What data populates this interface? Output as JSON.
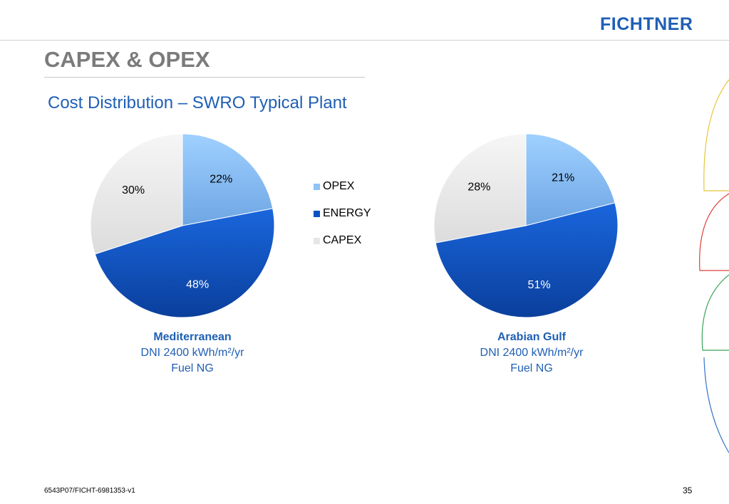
{
  "header": {
    "logo": "FICHTNER",
    "title": "CAPEX & OPEX",
    "subtitle": "Cost Distribution – SWRO Typical Plant"
  },
  "colors": {
    "opex": "#8fc3f5",
    "energy": "#0a52c4",
    "capex": "#ececec",
    "accent": "#1f5fb4"
  },
  "chart_data": [
    {
      "type": "pie",
      "categories": [
        "OPEX",
        "ENERGY",
        "CAPEX"
      ],
      "values": [
        22,
        48,
        30
      ],
      "labels": [
        "22%",
        "48%",
        "30%"
      ],
      "caption": {
        "region": "Mediterranean",
        "line1": "DNI 2400 kWh/m²/yr",
        "line2": "Fuel NG"
      }
    },
    {
      "type": "pie",
      "categories": [
        "OPEX",
        "ENERGY",
        "CAPEX"
      ],
      "values": [
        21,
        51,
        28
      ],
      "labels": [
        "21%",
        "51%",
        "28%"
      ],
      "caption": {
        "region": "Arabian Gulf",
        "line1": "DNI 2400 kWh/m²/yr",
        "line2": "Fuel NG"
      }
    }
  ],
  "legend": {
    "placement": "center",
    "items": [
      {
        "label": "OPEX"
      },
      {
        "label": "ENERGY"
      },
      {
        "label": "CAPEX"
      }
    ]
  },
  "footer": {
    "doc_ref": "6543P07/FICHT-6981353-v1",
    "page": "35"
  }
}
